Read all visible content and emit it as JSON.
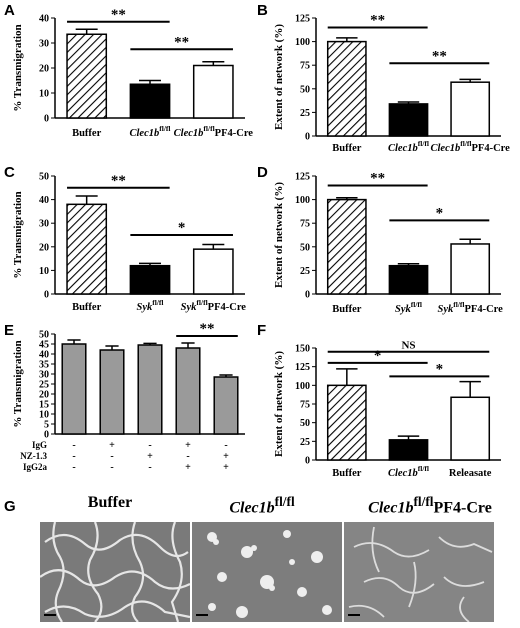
{
  "panels": [
    {
      "letter": "A"
    },
    {
      "letter": "B"
    },
    {
      "letter": "C"
    },
    {
      "letter": "D"
    },
    {
      "letter": "E"
    },
    {
      "letter": "F"
    },
    {
      "letter": "G"
    }
  ],
  "chart_data": [
    {
      "panel": "A",
      "type": "bar",
      "ylabel": "% Transmigration",
      "ylim": [
        0,
        40
      ],
      "yticks": [
        0,
        10,
        20,
        30,
        40
      ],
      "categories": [
        {
          "main": "Buffer",
          "italic": false,
          "sup": "",
          "suffix": ""
        },
        {
          "main": "Clec1b",
          "italic": true,
          "sup": "fl/fl",
          "suffix": ""
        },
        {
          "main": "Clec1b",
          "italic": true,
          "sup": "fl/fl",
          "suffix": "PF4-Cre"
        }
      ],
      "values": [
        33.5,
        13.5,
        21
      ],
      "errors": [
        2,
        1.5,
        1.5
      ],
      "fills": [
        "hatch",
        "black",
        "white"
      ],
      "sig": [
        {
          "from": 0,
          "to": 1,
          "label": "**",
          "y": 38.5
        },
        {
          "from": 1,
          "to": 2,
          "label": "**",
          "y": 27.5
        }
      ]
    },
    {
      "panel": "B",
      "type": "bar",
      "ylabel": "Extent of network (%)",
      "ylim": [
        0,
        125
      ],
      "yticks": [
        0,
        25,
        50,
        75,
        100,
        125
      ],
      "categories": [
        {
          "main": "Buffer",
          "italic": false,
          "sup": "",
          "suffix": ""
        },
        {
          "main": "Clec1b",
          "italic": true,
          "sup": "fl/fl",
          "suffix": ""
        },
        {
          "main": "Clec1b",
          "italic": true,
          "sup": "fl/fl",
          "suffix": "PF4-Cre"
        }
      ],
      "values": [
        100,
        34,
        57
      ],
      "errors": [
        4,
        2,
        3
      ],
      "fills": [
        "hatch",
        "black",
        "white"
      ],
      "sig": [
        {
          "from": 0,
          "to": 1,
          "label": "**",
          "y": 115
        },
        {
          "from": 1,
          "to": 2,
          "label": "**",
          "y": 77
        }
      ]
    },
    {
      "panel": "C",
      "type": "bar",
      "ylabel": "% Transmigration",
      "ylim": [
        0,
        50
      ],
      "yticks": [
        0,
        10,
        20,
        30,
        40,
        50
      ],
      "categories": [
        {
          "main": "Buffer",
          "italic": false,
          "sup": "",
          "suffix": ""
        },
        {
          "main": "Syk",
          "italic": true,
          "sup": "fl/fl",
          "suffix": ""
        },
        {
          "main": "Syk",
          "italic": true,
          "sup": "fl/fl",
          "suffix": "PF4-Cre"
        }
      ],
      "values": [
        38,
        12,
        19
      ],
      "errors": [
        3.5,
        1,
        2
      ],
      "fills": [
        "hatch",
        "black",
        "white"
      ],
      "sig": [
        {
          "from": 0,
          "to": 1,
          "label": "**",
          "y": 45
        },
        {
          "from": 1,
          "to": 2,
          "label": "*",
          "y": 25
        }
      ]
    },
    {
      "panel": "D",
      "type": "bar",
      "ylabel": "Extent of network (%)",
      "ylim": [
        0,
        125
      ],
      "yticks": [
        0,
        25,
        50,
        75,
        100,
        125
      ],
      "categories": [
        {
          "main": "Buffer",
          "italic": false,
          "sup": "",
          "suffix": ""
        },
        {
          "main": "Syk",
          "italic": true,
          "sup": "fl/fl",
          "suffix": ""
        },
        {
          "main": "Syk",
          "italic": true,
          "sup": "fl/fl",
          "suffix": "PF4-Cre"
        }
      ],
      "values": [
        100,
        30,
        53
      ],
      "errors": [
        2,
        2,
        5
      ],
      "fills": [
        "hatch",
        "black",
        "white"
      ],
      "sig": [
        {
          "from": 0,
          "to": 1,
          "label": "**",
          "y": 115
        },
        {
          "from": 1,
          "to": 2,
          "label": "*",
          "y": 78
        }
      ]
    },
    {
      "panel": "E",
      "type": "bar",
      "ylabel": "% Transmigration",
      "ylim": [
        0,
        50
      ],
      "yticks": [
        0,
        5,
        10,
        15,
        20,
        25,
        30,
        35,
        40,
        45,
        50
      ],
      "categories": [
        {
          "main": ""
        },
        {
          "main": ""
        },
        {
          "main": ""
        },
        {
          "main": ""
        },
        {
          "main": ""
        }
      ],
      "values": [
        45,
        42,
        44.5,
        43,
        28.5
      ],
      "errors": [
        2,
        2,
        0.8,
        2.5,
        1
      ],
      "fills": [
        "gray",
        "gray",
        "gray",
        "gray",
        "gray"
      ],
      "treatment_rows": [
        {
          "label": "IgG",
          "marks": [
            "-",
            "+",
            "-",
            "+",
            "-"
          ]
        },
        {
          "label": "NZ-1.3",
          "marks": [
            "-",
            "-",
            "+",
            "-",
            "+"
          ]
        },
        {
          "label": "IgG2a",
          "marks": [
            "-",
            "-",
            "-",
            "+",
            "+"
          ]
        }
      ],
      "sig": [
        {
          "from": 3,
          "to": 4,
          "label": "**",
          "y": 49
        }
      ]
    },
    {
      "panel": "F",
      "type": "bar",
      "ylabel": "Extent of network (%)",
      "ylim": [
        0,
        150
      ],
      "yticks": [
        0,
        25,
        50,
        75,
        100,
        125,
        150
      ],
      "categories": [
        {
          "main": "Buffer",
          "italic": false,
          "sup": "",
          "suffix": ""
        },
        {
          "main": "Clec1b",
          "italic": true,
          "sup": "fl/fl",
          "suffix": ""
        },
        {
          "main": "Releasate",
          "italic": false,
          "sup": "",
          "suffix": ""
        }
      ],
      "values": [
        100,
        27,
        84
      ],
      "errors": [
        22,
        5,
        21
      ],
      "fills": [
        "hatch",
        "black",
        "white"
      ],
      "sig": [
        {
          "from": 0,
          "to": 2,
          "label": "NS",
          "y": 145
        },
        {
          "from": 0,
          "to": 1,
          "label": "*",
          "y": 130
        },
        {
          "from": 1,
          "to": 2,
          "label": "*",
          "y": 112
        }
      ]
    }
  ],
  "micrographs": [
    {
      "title_main": "Buffer",
      "title_italic": false,
      "title_sup": "",
      "title_suffix": "",
      "icon": "network-icon"
    },
    {
      "title_main": "Clec1b",
      "title_italic": true,
      "title_sup": "fl/fl",
      "title_suffix": "",
      "icon": "cluster-icon"
    },
    {
      "title_main": "Clec1b",
      "title_italic": true,
      "title_sup": "fl/fl",
      "title_suffix": "PF4-Cre",
      "icon": "partial-network-icon"
    }
  ]
}
